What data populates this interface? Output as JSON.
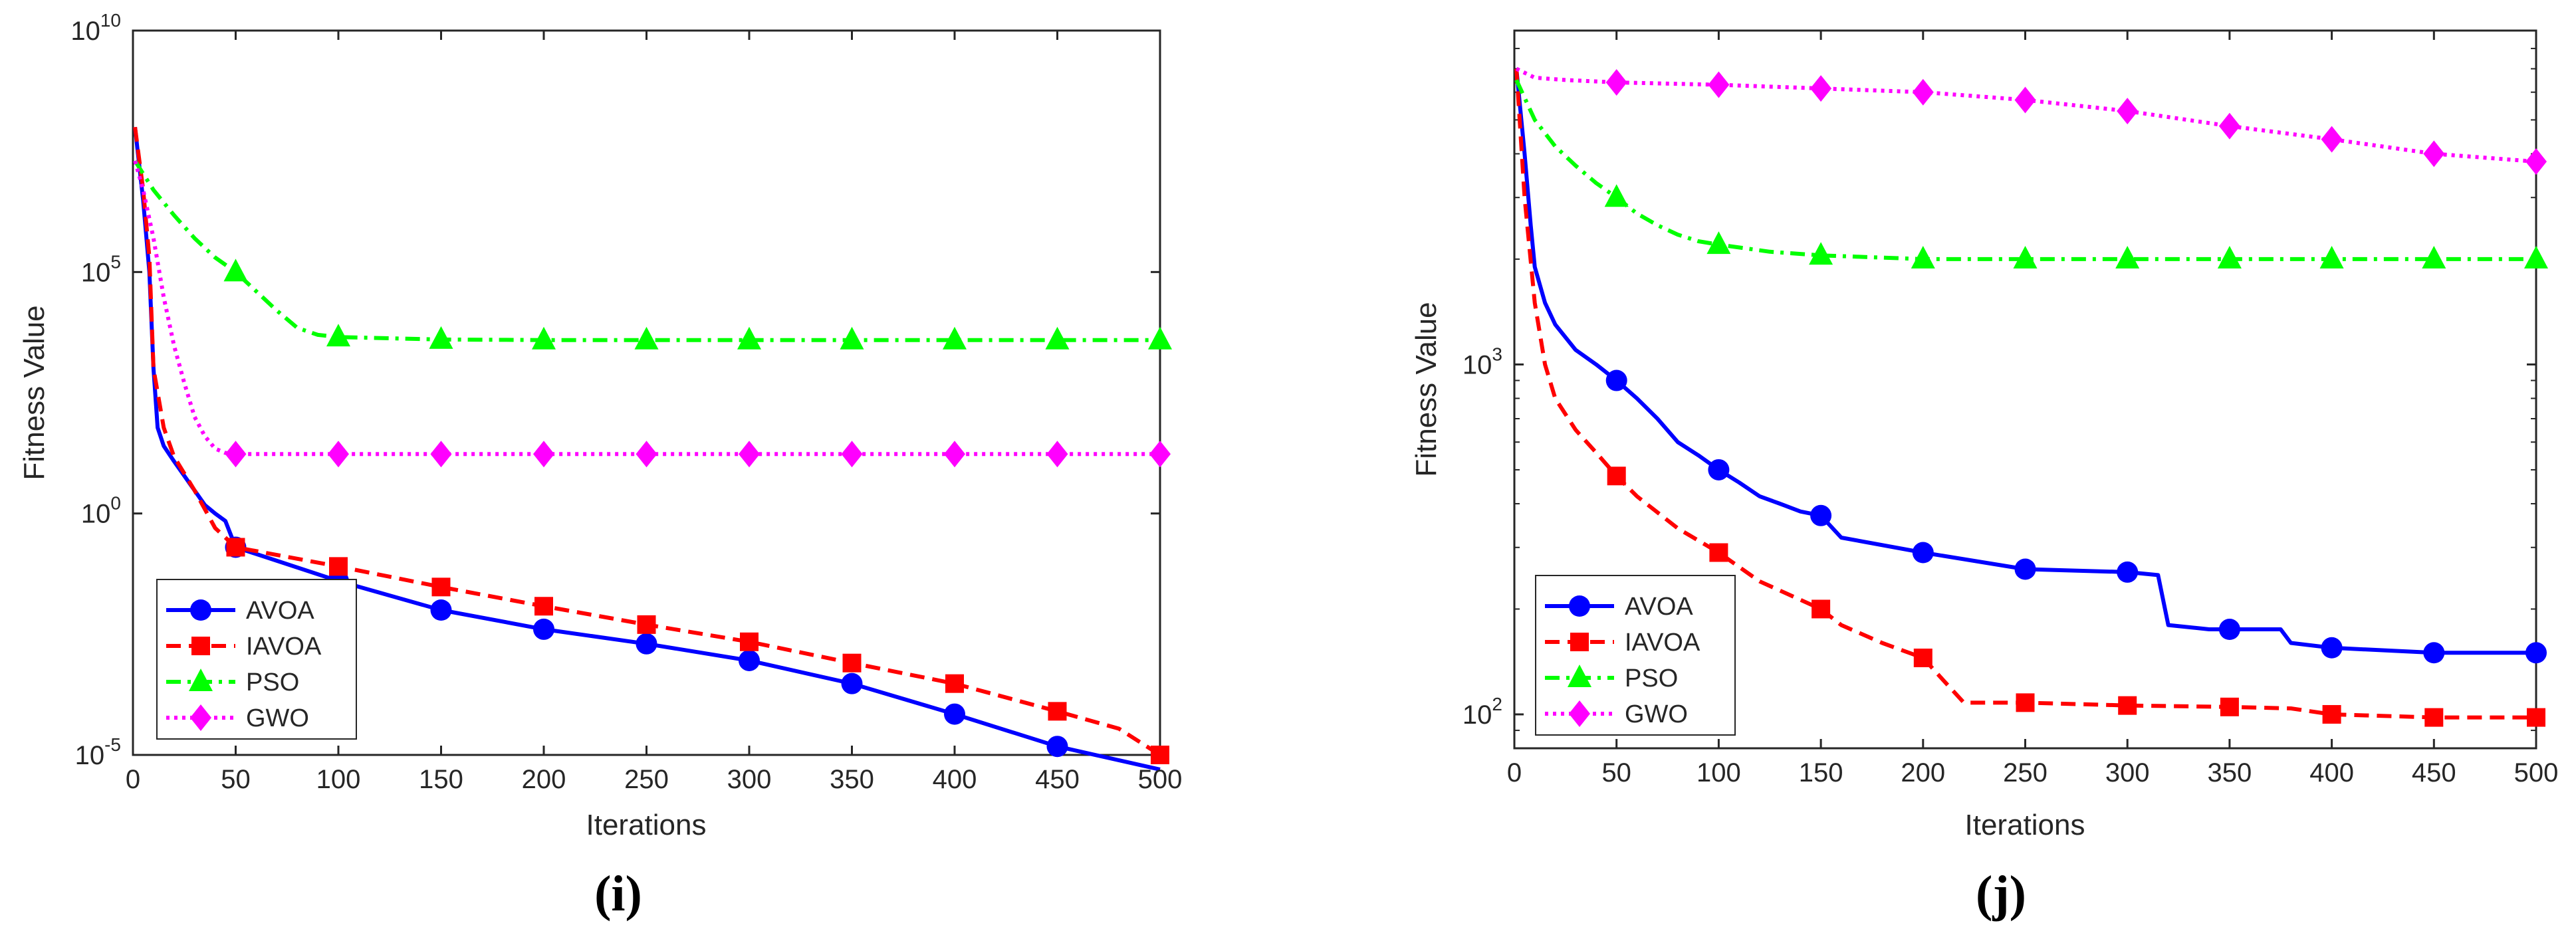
{
  "colors": {
    "AVOA": "#0000ff",
    "IAVOA": "#ff0000",
    "PSO": "#00ff00",
    "GWO": "#ff00ff"
  },
  "chart_data": [
    {
      "type": "line",
      "panel_label": "(i)",
      "xlabel": "Iterations",
      "ylabel": "Fitness Value",
      "yscale": "log",
      "xlim": [
        0,
        500
      ],
      "ylim": [
        1e-05,
        10000000000.0
      ],
      "x_ticks": [
        "0",
        "50",
        "100",
        "150",
        "200",
        "250",
        "300",
        "350",
        "400",
        "450",
        "500"
      ],
      "y_ticks": [
        {
          "base": "10",
          "exp": "-5"
        },
        {
          "base": "10",
          "exp": "0"
        },
        {
          "base": "10",
          "exp": "5"
        },
        {
          "base": "10",
          "exp": "10"
        }
      ],
      "legend_position": "bottom-left",
      "series": [
        {
          "name": "AVOA",
          "marker": "circle",
          "line_style": "solid",
          "x": [
            1,
            5,
            8,
            10,
            12,
            15,
            20,
            25,
            30,
            35,
            40,
            45,
            50,
            100,
            150,
            200,
            250,
            300,
            350,
            400,
            450,
            500
          ],
          "y": [
            100000000.0,
            3000000.0,
            100000.0,
            1000.0,
            60,
            25,
            12,
            6,
            3,
            1.5,
            1,
            0.7,
            0.2,
            0.04,
            0.01,
            0.004,
            0.002,
            0.0009,
            0.0003,
            7e-05,
            1.5e-05,
            5e-06
          ]
        },
        {
          "name": "IAVOA",
          "marker": "square",
          "line_style": "dashed",
          "x": [
            1,
            5,
            8,
            10,
            15,
            20,
            30,
            40,
            50,
            100,
            150,
            200,
            250,
            300,
            350,
            400,
            450,
            480,
            500
          ],
          "y": [
            100000000.0,
            5000000.0,
            200000.0,
            1000.0,
            60,
            15,
            3,
            0.5,
            0.2,
            0.08,
            0.03,
            0.012,
            0.005,
            0.0022,
            0.0008,
            0.0003,
            8e-05,
            3.5e-05,
            1e-05
          ]
        },
        {
          "name": "PSO",
          "marker": "triangle",
          "line_style": "dashdot",
          "x": [
            1,
            10,
            20,
            30,
            40,
            50,
            60,
            70,
            80,
            90,
            100,
            150,
            200,
            250,
            300,
            350,
            400,
            450,
            500
          ],
          "y": [
            20000000.0,
            5000000.0,
            1500000.0,
            500000.0,
            200000.0,
            100000.0,
            40000.0,
            16000.0,
            7000.0,
            5000.0,
            4500.0,
            4000.0,
            3900.0,
            3900.0,
            3900.0,
            3900.0,
            3900.0,
            3900.0,
            3900.0
          ]
        },
        {
          "name": "GWO",
          "marker": "diamond",
          "line_style": "dotted",
          "x": [
            1,
            5,
            10,
            15,
            20,
            25,
            30,
            35,
            40,
            45,
            50,
            100,
            150,
            200,
            250,
            300,
            350,
            400,
            450,
            500
          ],
          "y": [
            20000000.0,
            5000000.0,
            500000.0,
            30000.0,
            3000.0,
            500,
            100,
            40,
            22,
            18,
            17,
            17,
            17,
            17,
            17,
            17,
            17,
            17,
            17,
            17
          ]
        }
      ]
    },
    {
      "type": "line",
      "panel_label": "(j)",
      "xlabel": "Iterations",
      "ylabel": "Fitness Value",
      "yscale": "log",
      "xlim": [
        0,
        500
      ],
      "ylim": [
        80,
        9000
      ],
      "x_ticks": [
        "0",
        "50",
        "100",
        "150",
        "200",
        "250",
        "300",
        "350",
        "400",
        "450",
        "500"
      ],
      "y_ticks": [
        {
          "base": "10",
          "exp": "2"
        },
        {
          "base": "10",
          "exp": "3"
        }
      ],
      "legend_position": "bottom-left",
      "series": [
        {
          "name": "AVOA",
          "marker": "circle",
          "line_style": "solid",
          "x": [
            1,
            5,
            8,
            10,
            15,
            20,
            30,
            40,
            50,
            60,
            70,
            80,
            90,
            100,
            110,
            120,
            130,
            140,
            150,
            160,
            200,
            250,
            300,
            315,
            320,
            340,
            350,
            375,
            380,
            400,
            450,
            500
          ],
          "y": [
            7000,
            4000,
            2500,
            1900,
            1500,
            1300,
            1100,
            1000,
            900,
            800,
            700,
            600,
            550,
            500,
            460,
            420,
            400,
            380,
            370,
            320,
            290,
            260,
            255,
            250,
            180,
            175,
            175,
            175,
            160,
            155,
            150,
            150
          ]
        },
        {
          "name": "IAVOA",
          "marker": "square",
          "line_style": "dashed",
          "x": [
            1,
            5,
            10,
            15,
            20,
            30,
            40,
            50,
            60,
            80,
            100,
            120,
            150,
            160,
            180,
            200,
            210,
            220,
            250,
            300,
            350,
            380,
            400,
            450,
            500
          ],
          "y": [
            7000,
            3000,
            1500,
            1000,
            800,
            650,
            560,
            480,
            420,
            340,
            290,
            240,
            200,
            180,
            160,
            145,
            125,
            108,
            108,
            106,
            105,
            104,
            100,
            98,
            98
          ]
        },
        {
          "name": "PSO",
          "marker": "triangle",
          "line_style": "dashdot",
          "x": [
            1,
            10,
            20,
            30,
            40,
            50,
            60,
            70,
            80,
            90,
            100,
            125,
            150,
            200,
            250,
            300,
            350,
            400,
            450,
            500
          ],
          "y": [
            6500,
            5000,
            4200,
            3700,
            3300,
            3000,
            2700,
            2500,
            2350,
            2250,
            2200,
            2100,
            2050,
            2000,
            2000,
            2000,
            2000,
            2000,
            2000,
            2000
          ]
        },
        {
          "name": "GWO",
          "marker": "diamond",
          "line_style": "dotted",
          "x": [
            1,
            10,
            25,
            50,
            100,
            150,
            200,
            250,
            300,
            350,
            400,
            450,
            500
          ],
          "y": [
            7000,
            6600,
            6500,
            6400,
            6300,
            6150,
            6000,
            5700,
            5300,
            4800,
            4400,
            4000,
            3800
          ]
        }
      ]
    }
  ]
}
